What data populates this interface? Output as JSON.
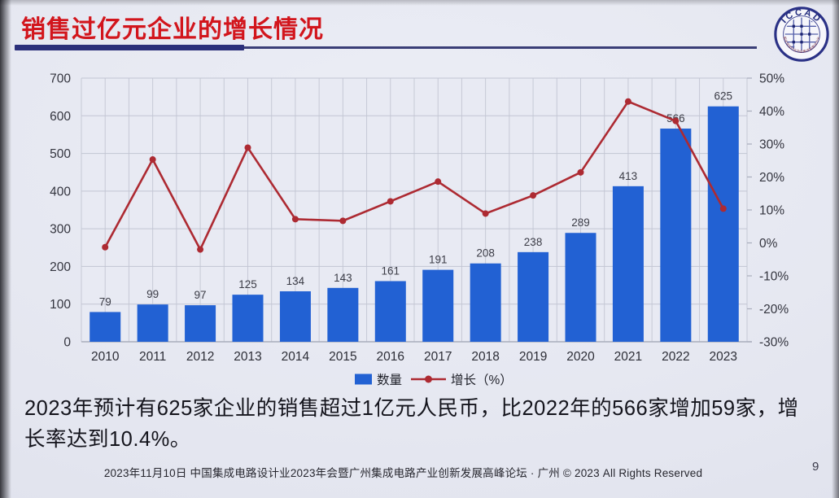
{
  "slide": {
    "title": "销售过亿元企业的增长情况",
    "body_text": "2023年预计有625家企业的销售超过1亿元人民币，比2022年的566家增加59家，增长率达到10.4%。",
    "footer": "2023年11月10日 中国集成电路设计业2023年会暨广州集成电路产业创新发展高峰论坛 · 广州 © 2023 All Rights Reserved",
    "page_number": "9"
  },
  "logo": {
    "arc_text": "ICCAD",
    "ring_text": "中国半导体行业协会集成电路设计分会"
  },
  "colors": {
    "title_red": "#d2151c",
    "underline_navy": "#2b2f7a",
    "bar_blue": "#2261d3",
    "line_red": "#ad2a32",
    "slide_background": "#e3e5ef"
  },
  "chart_data": {
    "type": "bar",
    "subtype": "bar+line combo, dual axis",
    "categories": [
      "2010",
      "2011",
      "2012",
      "2013",
      "2014",
      "2015",
      "2016",
      "2017",
      "2018",
      "2019",
      "2020",
      "2021",
      "2022",
      "2023"
    ],
    "series": [
      {
        "name": "数量",
        "type": "bar",
        "axis": "left",
        "color": "#2261d3",
        "values": [
          79,
          99,
          97,
          125,
          134,
          143,
          161,
          191,
          208,
          238,
          289,
          413,
          566,
          625
        ],
        "data_labels": [
          "79",
          "99",
          "97",
          "125",
          "134",
          "143",
          "161",
          "191",
          "208",
          "238",
          "289",
          "413",
          "566",
          "625"
        ]
      },
      {
        "name": "增长（%）",
        "type": "line",
        "axis": "right",
        "color": "#ad2a32",
        "values": [
          -1.3,
          25.3,
          -2,
          28.9,
          7.2,
          6.7,
          12.6,
          18.6,
          8.9,
          14.4,
          21.4,
          42.9,
          37,
          10.4
        ]
      }
    ],
    "left_axis": {
      "min": 0,
      "max": 700,
      "step": 100,
      "ticks": [
        "0",
        "100",
        "200",
        "300",
        "400",
        "500",
        "600",
        "700"
      ]
    },
    "right_axis": {
      "min": -30,
      "max": 50,
      "step": 10,
      "ticks": [
        "-30%",
        "-20%",
        "-10%",
        "0%",
        "10%",
        "20%",
        "30%",
        "40%",
        "50%"
      ]
    },
    "legend": [
      "数量",
      "增长（%）"
    ],
    "legend_position": "bottom",
    "grid": true,
    "title": "",
    "xlabel": "",
    "ylabel": ""
  }
}
